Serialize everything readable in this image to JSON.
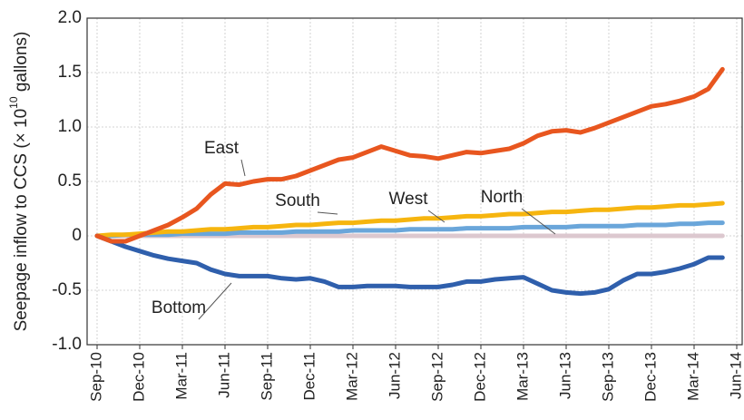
{
  "chart_data": {
    "type": "line",
    "ylabel": {
      "text": "Seepage inflow to CCS (× 10",
      "superscript": "10",
      "after": " gallons)"
    },
    "categories": [
      "Sep-10",
      null,
      null,
      "Dec-10",
      null,
      null,
      "Mar-11",
      null,
      null,
      "Jun-11",
      null,
      null,
      "Sep-11",
      null,
      null,
      "Dec-11",
      null,
      null,
      "Mar-12",
      null,
      null,
      "Jun-12",
      null,
      null,
      "Sep-12",
      null,
      null,
      "Dec-12",
      null,
      null,
      "Mar-13",
      null,
      null,
      "Jun-13",
      null,
      null,
      "Sep-13",
      null,
      null,
      "Dec-13",
      null,
      null,
      "Mar-14",
      null,
      null,
      "Jun-14"
    ],
    "series": [
      {
        "name": "East",
        "color": "#e8561f",
        "values": [
          0,
          -0.05,
          -0.05,
          0,
          0.05,
          0.1,
          0.17,
          0.25,
          0.38,
          0.48,
          0.47,
          0.5,
          0.52,
          0.52,
          0.55,
          0.6,
          0.65,
          0.7,
          0.72,
          0.77,
          0.82,
          0.78,
          0.74,
          0.73,
          0.71,
          0.74,
          0.77,
          0.76,
          0.78,
          0.8,
          0.85,
          0.92,
          0.96,
          0.97,
          0.95,
          0.99,
          1.04,
          1.09,
          1.14,
          1.19,
          1.21,
          1.24,
          1.28,
          1.35,
          1.53,
          null
        ]
      },
      {
        "name": "South",
        "color": "#f6b50f",
        "values": [
          0,
          0.01,
          0.01,
          0.02,
          0.03,
          0.04,
          0.04,
          0.05,
          0.06,
          0.06,
          0.07,
          0.08,
          0.08,
          0.09,
          0.1,
          0.1,
          0.11,
          0.12,
          0.12,
          0.13,
          0.14,
          0.14,
          0.15,
          0.16,
          0.16,
          0.17,
          0.18,
          0.18,
          0.19,
          0.2,
          0.2,
          0.21,
          0.22,
          0.22,
          0.23,
          0.24,
          0.24,
          0.25,
          0.26,
          0.26,
          0.27,
          0.28,
          0.28,
          0.29,
          0.3,
          null
        ]
      },
      {
        "name": "West",
        "color": "#6aa6da",
        "values": [
          0,
          0,
          0.01,
          0.01,
          0.01,
          0.01,
          0.02,
          0.02,
          0.02,
          0.02,
          0.03,
          0.03,
          0.03,
          0.03,
          0.04,
          0.04,
          0.04,
          0.04,
          0.05,
          0.05,
          0.05,
          0.05,
          0.06,
          0.06,
          0.06,
          0.06,
          0.07,
          0.07,
          0.07,
          0.07,
          0.08,
          0.08,
          0.08,
          0.08,
          0.09,
          0.09,
          0.09,
          0.09,
          0.1,
          0.1,
          0.1,
          0.11,
          0.11,
          0.12,
          0.12,
          null
        ]
      },
      {
        "name": "North",
        "color": "#dcc8cf",
        "values": [
          0,
          0,
          0,
          0,
          0,
          0,
          0,
          0,
          0,
          0,
          0,
          0,
          0,
          0,
          0,
          0,
          0,
          0,
          0,
          0,
          0,
          0,
          0,
          0,
          0,
          0,
          0,
          0,
          0,
          0,
          0,
          0,
          0,
          0,
          0,
          0,
          0,
          0,
          0,
          0,
          0,
          0,
          0,
          0,
          0,
          null
        ]
      },
      {
        "name": "Bottom",
        "color": "#2f5fac",
        "values": [
          0,
          -0.05,
          -0.1,
          -0.14,
          -0.18,
          -0.21,
          -0.23,
          -0.25,
          -0.31,
          -0.35,
          -0.37,
          -0.37,
          -0.37,
          -0.39,
          -0.4,
          -0.39,
          -0.42,
          -0.47,
          -0.47,
          -0.46,
          -0.46,
          -0.46,
          -0.47,
          -0.47,
          -0.47,
          -0.45,
          -0.42,
          -0.42,
          -0.4,
          -0.39,
          -0.38,
          -0.44,
          -0.5,
          -0.52,
          -0.53,
          -0.52,
          -0.49,
          -0.41,
          -0.35,
          -0.35,
          -0.33,
          -0.3,
          -0.26,
          -0.2,
          -0.2,
          null
        ]
      }
    ],
    "ylim": [
      -1,
      2
    ],
    "yticks": [
      {
        "value": -1,
        "label": "-1.0"
      },
      -0.5,
      0,
      0.5,
      {
        "value": 1,
        "label": "1.0"
      },
      1.5,
      {
        "value": 2,
        "label": "2.0"
      }
    ],
    "grid": true,
    "annotations": [
      {
        "text": "East"
      },
      {
        "text": "South"
      },
      {
        "text": "West"
      },
      {
        "text": "North"
      },
      {
        "text": "Bottom"
      }
    ]
  }
}
